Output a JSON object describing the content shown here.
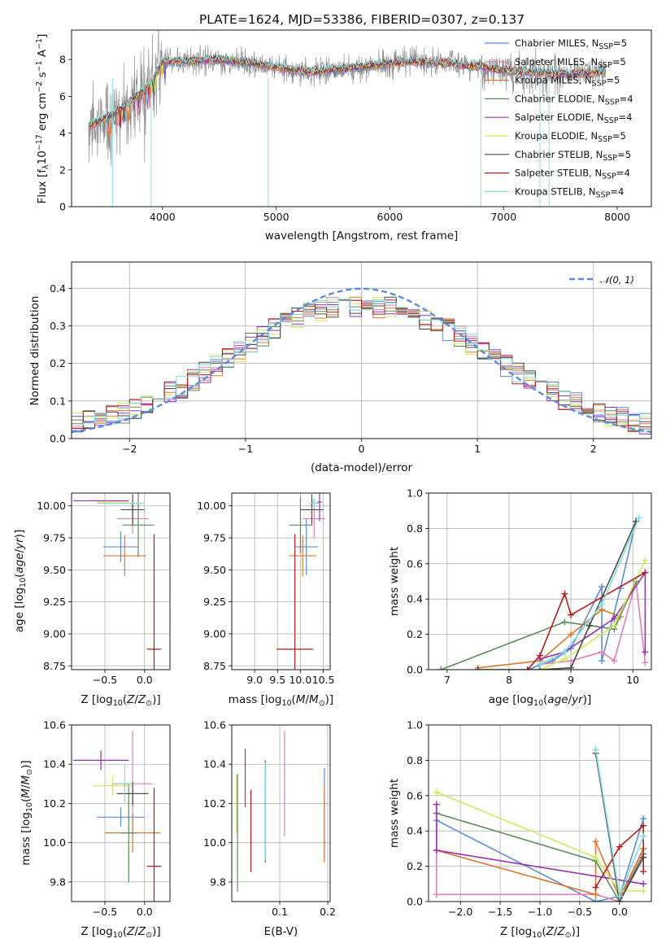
{
  "figure": {
    "title": "PLATE=1624, MJD=53386, FIBERID=0307, z=0.137",
    "colors": {
      "Chabrier MILES": "#5b8bd8",
      "Salpeter MILES": "#e07fb8",
      "Kroupa MILES": "#e0762a",
      "Chabrier ELODIE": "#5e8a5e",
      "Salpeter ELODIE": "#9a30b8",
      "Kroupa ELODIE": "#d4e85a",
      "Chabrier STELIB": "#4a4a4a",
      "Salpeter STELIB": "#b41c1c",
      "Kroupa STELIB": "#7fdde0",
      "data": "#888888",
      "normal": "#5b8bd8"
    }
  },
  "chart_data": [
    {
      "id": "spectrum",
      "type": "line",
      "xlabel": "wavelength [Angstrom, rest frame]",
      "ylabel": "Flux [f",
      "xlim": [
        3200,
        8300
      ],
      "ylim": [
        0,
        9.6
      ],
      "xticks": [
        "4000",
        "5000",
        "6000",
        "7000",
        "8000"
      ],
      "yticks": [
        "0",
        "2",
        "4",
        "6",
        "8"
      ],
      "grid": false,
      "legend_position": "upper-right",
      "legend": [
        "Chabrier MILES, N",
        "Salpeter MILES, N",
        "Kroupa MILES, N",
        "Chabrier ELODIE, N",
        "Salpeter ELODIE, N",
        "Kroupa ELODIE, N",
        "Chabrier STELIB, N",
        "Salpeter STELIB, N",
        "Kroupa STELIB, N"
      ],
      "nssp": [
        5,
        5,
        5,
        4,
        4,
        5,
        5,
        4,
        4
      ],
      "continuum": {
        "x": [
          3350,
          3500,
          3700,
          3900,
          4000,
          4200,
          4500,
          4800,
          5000,
          5300,
          5600,
          5900,
          6200,
          6500,
          6800,
          7000,
          7300,
          7600,
          7900
        ],
        "y": [
          4.4,
          4.8,
          5.6,
          6.7,
          7.9,
          7.9,
          8.0,
          7.8,
          7.6,
          7.3,
          7.5,
          7.7,
          7.9,
          7.8,
          7.6,
          7.4,
          7.3,
          7.2,
          7.3
        ]
      }
    },
    {
      "id": "residuals",
      "type": "bar",
      "xlabel": "(data-model)/error",
      "ylabel": "Normed distribution",
      "xlim": [
        -2.5,
        2.5
      ],
      "ylim": [
        0,
        0.47
      ],
      "xticks": [
        "−2",
        "−1",
        "0",
        "1",
        "2"
      ],
      "yticks": [
        "0.0",
        "0.1",
        "0.2",
        "0.3",
        "0.4"
      ],
      "grid": true,
      "legend_position": "upper-right",
      "legend": [
        "𝒩(0, 1)"
      ],
      "bin_width": 0.1
    },
    {
      "id": "age-vs-Z",
      "type": "scatter",
      "xlabel": "Z [log",
      "ylabel": "age  [log",
      "xlim": [
        -0.92,
        0.32
      ],
      "ylim": [
        8.72,
        10.1
      ],
      "xticks": [
        "−0.5",
        "0.0"
      ],
      "yticks": [
        "8.75",
        "9.00",
        "9.25",
        "9.50",
        "9.75",
        "10.00"
      ],
      "grid": true,
      "points": [
        {
          "model": "Chabrier MILES",
          "x": -0.3,
          "xerr": 0.22,
          "y": 9.68,
          "yerr": 0.12
        },
        {
          "model": "Salpeter MILES",
          "x": -0.15,
          "xerr": 0.2,
          "y": 9.9,
          "yerr": 0.12
        },
        {
          "model": "Kroupa MILES",
          "x": -0.25,
          "xerr": 0.27,
          "y": 9.61,
          "yerr": 0.16
        },
        {
          "model": "Chabrier ELODIE",
          "x": -0.08,
          "xerr": 0.2,
          "y": 9.85,
          "yerr": 0.25
        },
        {
          "model": "Salpeter ELODIE",
          "x": -0.55,
          "xerr": 0.35,
          "y": 10.04,
          "yerr": 0.0
        },
        {
          "model": "Kroupa ELODIE",
          "x": -0.4,
          "xerr": 0.2,
          "y": 10.03,
          "yerr": 0.0
        },
        {
          "model": "Chabrier STELIB",
          "x": -0.15,
          "xerr": 0.15,
          "y": 9.97,
          "yerr": 0.12
        },
        {
          "model": "Salpeter STELIB",
          "x": 0.12,
          "xerr": 0.09,
          "y": 8.88,
          "yerr": 0.9
        },
        {
          "model": "Kroupa STELIB",
          "x": -0.3,
          "xerr": 0.3,
          "y": 10.02,
          "yerr": 0.0
        }
      ]
    },
    {
      "id": "age-vs-mass",
      "type": "scatter",
      "xlabel": "mass [log",
      "ylabel": "",
      "xlim": [
        8.5,
        10.65
      ],
      "ylim": [
        8.72,
        10.1
      ],
      "xticks": [
        "9.0",
        "9.5",
        "10.0",
        "10.5"
      ],
      "yticks": [
        "8.75",
        "9.00",
        "9.25",
        "9.50",
        "9.75",
        "10.00"
      ],
      "grid": true,
      "points": [
        {
          "model": "Chabrier MILES",
          "x": 10.13,
          "xerr": 0.25,
          "y": 9.68,
          "yerr": 0.22
        },
        {
          "model": "Salpeter MILES",
          "x": 10.3,
          "xerr": 0.25,
          "y": 9.9,
          "yerr": 0.15
        },
        {
          "model": "Kroupa MILES",
          "x": 10.05,
          "xerr": 0.3,
          "y": 9.61,
          "yerr": 0.16
        },
        {
          "model": "Chabrier ELODIE",
          "x": 10.0,
          "xerr": 0.25,
          "y": 9.85,
          "yerr": 0.22
        },
        {
          "model": "Salpeter ELODIE",
          "x": 10.42,
          "xerr": 0.05,
          "y": 10.03,
          "yerr": 0.15
        },
        {
          "model": "Kroupa ELODIE",
          "x": 10.29,
          "xerr": 0.05,
          "y": 10.03,
          "yerr": 0.03
        },
        {
          "model": "Chabrier STELIB",
          "x": 10.25,
          "xerr": 0.25,
          "y": 9.97,
          "yerr": 0.12
        },
        {
          "model": "Salpeter STELIB",
          "x": 9.88,
          "xerr": 0.4,
          "y": 8.88,
          "yerr": 0.9
        },
        {
          "model": "Kroupa STELIB",
          "x": 10.3,
          "xerr": 0.1,
          "y": 10.02,
          "yerr": 0.04
        }
      ]
    },
    {
      "id": "weight-vs-age",
      "type": "line",
      "xlabel": "age  [log",
      "ylabel": "mass weight",
      "xlim": [
        6.7,
        10.3
      ],
      "ylim": [
        0,
        1.0
      ],
      "xticks": [
        "7",
        "8",
        "9",
        "10"
      ],
      "yticks": [
        "0.0",
        "0.2",
        "0.4",
        "0.6",
        "0.8",
        "1.0"
      ],
      "grid": true,
      "series": [
        {
          "model": "Chabrier MILES",
          "x": [
            8.3,
            8.7,
            9.0,
            9.5,
            9.5,
            9.8,
            10.05
          ],
          "y": [
            0.0,
            0.05,
            0.12,
            0.47,
            0.05,
            0.46,
            0.84
          ]
        },
        {
          "model": "Salpeter MILES",
          "x": [
            8.5,
            9.0,
            9.5,
            9.7,
            10.05,
            10.2
          ],
          "y": [
            0.03,
            0.05,
            0.1,
            0.05,
            0.5,
            0.04
          ]
        },
        {
          "model": "Kroupa MILES",
          "x": [
            7.5,
            8.5,
            9.0,
            9.5,
            9.8
          ],
          "y": [
            0.01,
            0.05,
            0.2,
            0.34,
            0.3
          ]
        },
        {
          "model": "Chabrier ELODIE",
          "x": [
            6.9,
            8.9,
            9.7,
            10.05
          ],
          "y": [
            0.0,
            0.27,
            0.23,
            0.5
          ]
        },
        {
          "model": "Salpeter ELODIE",
          "x": [
            8.5,
            8.9,
            9.7,
            10.2,
            10.2
          ],
          "y": [
            0.06,
            0.1,
            0.29,
            0.55,
            0.1
          ]
        },
        {
          "model": "Kroupa ELODIE",
          "x": [
            8.5,
            8.9,
            9.7,
            10.2
          ],
          "y": [
            0.0,
            0.06,
            0.25,
            0.62
          ]
        },
        {
          "model": "Chabrier STELIB",
          "x": [
            7.5,
            8.5,
            9.0,
            9.3,
            10.05
          ],
          "y": [
            0.0,
            0.0,
            0.01,
            0.25,
            0.84
          ]
        },
        {
          "model": "Salpeter STELIB",
          "x": [
            8.3,
            8.5,
            8.9,
            9.0,
            10.2
          ],
          "y": [
            0.0,
            0.08,
            0.43,
            0.31,
            0.55
          ]
        },
        {
          "model": "Kroupa STELIB",
          "x": [
            8.5,
            8.9,
            9.5,
            10.1
          ],
          "y": [
            0.03,
            0.1,
            0.37,
            0.86
          ]
        }
      ]
    },
    {
      "id": "mass-vs-Z",
      "type": "scatter",
      "xlabel": "Z [log",
      "ylabel": "mass [log",
      "xlim": [
        -0.92,
        0.32
      ],
      "ylim": [
        9.7,
        10.6
      ],
      "xticks": [
        "−0.5",
        "0.0"
      ],
      "yticks": [
        "9.8",
        "10.0",
        "10.2",
        "10.4",
        "10.6"
      ],
      "grid": true,
      "points": [
        {
          "model": "Chabrier MILES",
          "x": -0.3,
          "xerr": 0.3,
          "y": 10.13,
          "yerr": 0.05
        },
        {
          "model": "Salpeter MILES",
          "x": -0.15,
          "xerr": 0.25,
          "y": 10.3,
          "yerr": 0.27
        },
        {
          "model": "Kroupa MILES",
          "x": -0.15,
          "xerr": 0.35,
          "y": 10.05,
          "yerr": 0.1
        },
        {
          "model": "Chabrier ELODIE",
          "x": -0.2,
          "xerr": 0.1,
          "y": 10.05,
          "yerr": 0.25
        },
        {
          "model": "Salpeter ELODIE",
          "x": -0.55,
          "xerr": 0.35,
          "y": 10.42,
          "yerr": 0.05
        },
        {
          "model": "Kroupa ELODIE",
          "x": -0.4,
          "xerr": 0.25,
          "y": 10.29,
          "yerr": 0.05
        },
        {
          "model": "Chabrier STELIB",
          "x": -0.15,
          "xerr": 0.2,
          "y": 10.25,
          "yerr": 0.06
        },
        {
          "model": "Salpeter STELIB",
          "x": 0.12,
          "xerr": 0.09,
          "y": 9.88,
          "yerr": 0.4
        },
        {
          "model": "Kroupa STELIB",
          "x": -0.25,
          "xerr": 0.1,
          "y": 10.3,
          "yerr": 0.1
        }
      ]
    },
    {
      "id": "mass-vs-EBV",
      "type": "scatter",
      "xlabel": "E(B-V)",
      "ylabel": "",
      "xlim": [
        0.0,
        0.205
      ],
      "ylim": [
        9.7,
        10.6
      ],
      "xticks": [
        "0.1",
        "0.2"
      ],
      "yticks": [
        "9.8",
        "10.0",
        "10.2",
        "10.4",
        "10.6"
      ],
      "grid": true,
      "points": [
        {
          "model": "Chabrier MILES",
          "x": 0.193,
          "y": 10.15,
          "yerr": 0.23
        },
        {
          "model": "Salpeter MILES",
          "x": 0.11,
          "y": 10.3,
          "yerr": 0.27
        },
        {
          "model": "Kroupa MILES",
          "x": 0.193,
          "y": 10.1,
          "yerr": 0.2
        },
        {
          "model": "Chabrier ELODIE",
          "x": 0.012,
          "y": 10.05,
          "yerr": 0.3
        },
        {
          "model": "Salpeter ELODIE",
          "x": 0.028,
          "y": 10.33,
          "yerr": 0.15
        },
        {
          "model": "Kroupa ELODIE",
          "x": 0.01,
          "y": 10.2,
          "yerr": 0.15
        },
        {
          "model": "Chabrier STELIB",
          "x": 0.07,
          "y": 10.16,
          "yerr": 0.26
        },
        {
          "model": "Salpeter STELIB",
          "x": 0.04,
          "y": 10.06,
          "yerr": 0.21
        },
        {
          "model": "Kroupa STELIB",
          "x": 0.07,
          "y": 10.16,
          "yerr": 0.25
        }
      ]
    },
    {
      "id": "weight-vs-Z",
      "type": "line",
      "xlabel": "Z [log",
      "ylabel": "mass weight",
      "xlim": [
        -2.4,
        0.4
      ],
      "ylim": [
        0,
        1.0
      ],
      "xticks": [
        "−2.0",
        "−1.5",
        "−1.0",
        "−0.5",
        "0.0"
      ],
      "yticks": [
        "0.0",
        "0.2",
        "0.4",
        "0.6",
        "0.8",
        "1.0"
      ],
      "grid": true,
      "series": [
        {
          "model": "Chabrier MILES",
          "x": [
            -2.3,
            -0.3,
            0.0,
            0.3
          ],
          "y": [
            0.46,
            0.0,
            0.03,
            0.47
          ]
        },
        {
          "model": "Salpeter MILES",
          "x": [
            -2.3,
            -2.3,
            -0.3,
            0.0,
            0.3
          ],
          "y": [
            0.5,
            0.04,
            0.04,
            0.0,
            0.3
          ]
        },
        {
          "model": "Kroupa MILES",
          "x": [
            -2.3,
            -0.3,
            -0.3,
            0.0,
            0.3
          ],
          "y": [
            0.29,
            0.04,
            0.34,
            0.02,
            0.3
          ]
        },
        {
          "model": "Chabrier ELODIE",
          "x": [
            -2.3,
            -0.3,
            0.0,
            0.3
          ],
          "y": [
            0.5,
            0.23,
            0.0,
            0.27
          ]
        },
        {
          "model": "Salpeter ELODIE",
          "x": [
            -2.3,
            -2.3,
            0.3
          ],
          "y": [
            0.55,
            0.29,
            0.1
          ]
        },
        {
          "model": "Kroupa ELODIE",
          "x": [
            -2.3,
            -0.3,
            0.0,
            0.3
          ],
          "y": [
            0.62,
            0.25,
            0.06,
            0.06
          ]
        },
        {
          "model": "Chabrier STELIB",
          "x": [
            -0.3,
            0.0,
            0.3
          ],
          "y": [
            0.84,
            0.0,
            0.25
          ]
        },
        {
          "model": "Salpeter STELIB",
          "x": [
            -0.3,
            0.0,
            0.3,
            0.3
          ],
          "y": [
            0.08,
            0.31,
            0.43,
            0.17
          ]
        },
        {
          "model": "Kroupa STELIB",
          "x": [
            -0.3,
            0.0,
            0.3
          ],
          "y": [
            0.86,
            0.03,
            0.37
          ]
        }
      ]
    }
  ]
}
